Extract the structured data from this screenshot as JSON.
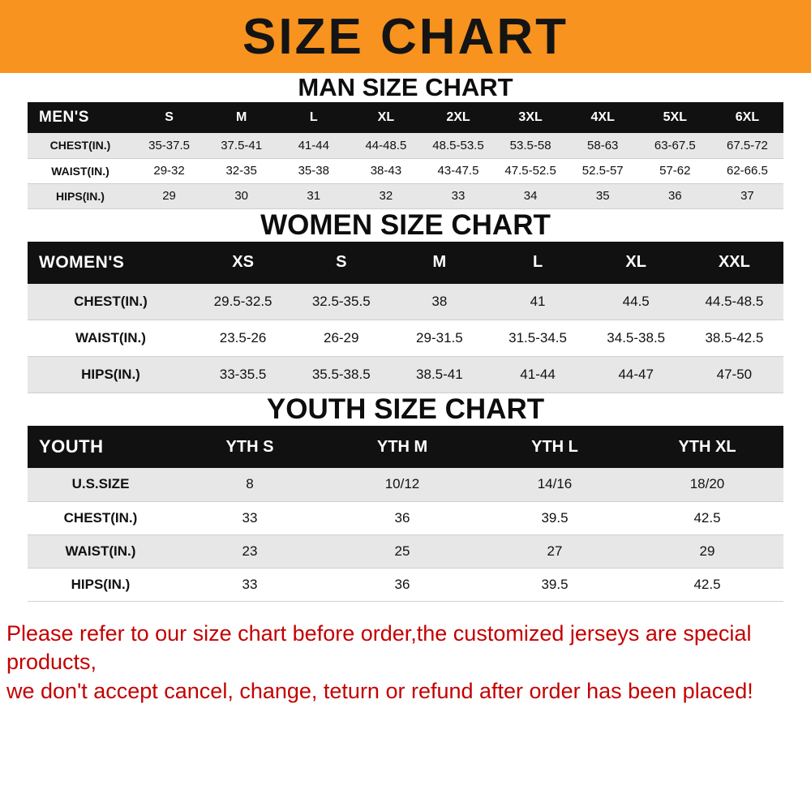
{
  "banner": {
    "title": "SIZE CHART",
    "bg_color": "#f7931e"
  },
  "chart_data": [
    {
      "type": "table",
      "title": "MAN SIZE CHART",
      "header": [
        "MEN'S",
        "S",
        "M",
        "L",
        "XL",
        "2XL",
        "3XL",
        "4XL",
        "5XL",
        "6XL"
      ],
      "rows": [
        [
          "CHEST(IN.)",
          "35-37.5",
          "37.5-41",
          "41-44",
          "44-48.5",
          "48.5-53.5",
          "53.5-58",
          "58-63",
          "63-67.5",
          "67.5-72"
        ],
        [
          "WAIST(IN.)",
          "29-32",
          "32-35",
          "35-38",
          "38-43",
          "43-47.5",
          "47.5-52.5",
          "52.5-57",
          "57-62",
          "62-66.5"
        ],
        [
          "HIPS(IN.)",
          "29",
          "30",
          "31",
          "32",
          "33",
          "34",
          "35",
          "36",
          "37"
        ]
      ]
    },
    {
      "type": "table",
      "title": "WOMEN SIZE CHART",
      "header": [
        "WOMEN'S",
        "XS",
        "S",
        "M",
        "L",
        "XL",
        "XXL"
      ],
      "rows": [
        [
          "CHEST(IN.)",
          "29.5-32.5",
          "32.5-35.5",
          "38",
          "41",
          "44.5",
          "44.5-48.5"
        ],
        [
          "WAIST(IN.)",
          "23.5-26",
          "26-29",
          "29-31.5",
          "31.5-34.5",
          "34.5-38.5",
          "38.5-42.5"
        ],
        [
          "HIPS(IN.)",
          "33-35.5",
          "35.5-38.5",
          "38.5-41",
          "41-44",
          "44-47",
          "47-50"
        ]
      ]
    },
    {
      "type": "table",
      "title": "YOUTH SIZE CHART",
      "header": [
        "YOUTH",
        "YTH S",
        "YTH M",
        "YTH L",
        "YTH XL"
      ],
      "rows": [
        [
          "U.S.SIZE",
          "8",
          "10/12",
          "14/16",
          "18/20"
        ],
        [
          "CHEST(IN.)",
          "33",
          "36",
          "39.5",
          "42.5"
        ],
        [
          "WAIST(IN.)",
          "23",
          "25",
          "27",
          "29"
        ],
        [
          "HIPS(IN.)",
          "33",
          "36",
          "39.5",
          "42.5"
        ]
      ]
    }
  ],
  "footer": {
    "color": "#c40000",
    "lines": [
      "Please refer to our size chart before order,the customized jerseys are special products,",
      "we don't accept cancel, change, teturn or refund after order has been placed!"
    ]
  }
}
